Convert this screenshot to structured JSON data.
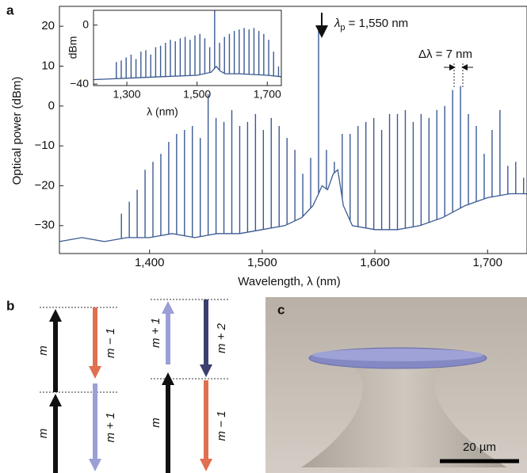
{
  "chart_data": [
    {
      "type": "line",
      "ylabel": "Optical power (dBm)",
      "xlabel": "Wavelength, λ (nm)",
      "xlim": [
        1320,
        1735
      ],
      "ylim": [
        -37,
        25
      ],
      "xticks": [
        {
          "value": 1400,
          "label": "1,400"
        },
        {
          "value": 1500,
          "label": "1,500"
        },
        {
          "value": 1600,
          "label": "1,600"
        },
        {
          "value": 1700,
          "label": "1,700"
        }
      ],
      "yticks": [
        {
          "value": -30,
          "label": "−30"
        },
        {
          "value": -20,
          "label": "−20"
        },
        {
          "value": -10,
          "label": "−10"
        },
        0,
        10,
        20
      ],
      "grid": false,
      "series": [
        {
          "style": "line",
          "color": "#3b5a92",
          "x": [
            1320,
            1340,
            1360,
            1380,
            1400,
            1420,
            1440,
            1460,
            1480,
            1500,
            1520,
            1535,
            1545,
            1550,
            1553,
            1558,
            1563,
            1567,
            1572,
            1580,
            1600,
            1620,
            1640,
            1660,
            1680,
            1700,
            1720,
            1735
          ],
          "values": [
            -34,
            -33,
            -34,
            -33,
            -33,
            -32,
            -33,
            -32,
            -32,
            -31,
            -30,
            -28,
            -25,
            -22,
            -20,
            -21,
            -17,
            -16,
            -25,
            -30,
            -31,
            -31,
            -30,
            -28,
            -25,
            -23,
            -22,
            -22
          ]
        },
        {
          "style": "stems",
          "color": "#3b5a92",
          "x": [
            1375,
            1382,
            1389,
            1396,
            1403,
            1410,
            1417,
            1424,
            1431,
            1438,
            1445,
            1452,
            1459,
            1466,
            1473,
            1480,
            1487,
            1494,
            1501,
            1508,
            1515,
            1522,
            1529,
            1536,
            1543,
            1550,
            1557,
            1564,
            1571,
            1578,
            1585,
            1592,
            1599,
            1606,
            1613,
            1620,
            1627,
            1634,
            1641,
            1648,
            1655,
            1662,
            1669,
            1676,
            1683,
            1690,
            1697,
            1704,
            1711,
            1718,
            1725,
            1732
          ],
          "values": [
            -27,
            -24,
            -21,
            -16,
            -14,
            -12,
            -9,
            -7,
            -6,
            -5,
            -8,
            3,
            -3,
            -4,
            -1,
            -5,
            -4,
            -2,
            -6,
            -3,
            -5,
            -8,
            -11,
            -17,
            -13,
            20,
            -11,
            -14,
            -7,
            -7,
            -5,
            -4,
            -3,
            -6,
            -2,
            -2,
            -1,
            -4,
            -2,
            -3,
            -1,
            0,
            4,
            5,
            -2,
            -5,
            -12,
            -6,
            -1,
            -15,
            -14,
            -18
          ]
        }
      ],
      "annotations": {
        "pump_symbol": "λ",
        "pump_sub": "p",
        "pump_text": " = 1,550 nm",
        "spacing": "Δλ = 7 nm"
      }
    },
    {
      "type": "line",
      "ylabel": "dBm",
      "xlabel": "λ (nm)",
      "xlim": [
        1205,
        1740
      ],
      "ylim": [
        -41,
        10
      ],
      "xticks": [
        {
          "value": 1300,
          "label": "1,300"
        },
        {
          "value": 1500,
          "label": "1,500"
        },
        {
          "value": 1700,
          "label": "1,700"
        }
      ],
      "yticks": [
        {
          "value": -40,
          "label": "−40"
        },
        0
      ],
      "grid": false,
      "series": [
        {
          "style": "line",
          "color": "#3b5a92",
          "x": [
            1205,
            1300,
            1400,
            1500,
            1540,
            1555,
            1565,
            1580,
            1620,
            1700,
            1740
          ],
          "values": [
            -37,
            -36,
            -35,
            -34,
            -32,
            -28,
            -31,
            -33,
            -33,
            -34,
            -35
          ]
        },
        {
          "style": "stems",
          "color": "#3b5a92",
          "x": [
            1270,
            1284,
            1298,
            1312,
            1326,
            1340,
            1354,
            1368,
            1382,
            1396,
            1410,
            1424,
            1438,
            1452,
            1466,
            1480,
            1494,
            1508,
            1522,
            1536,
            1550,
            1564,
            1578,
            1592,
            1606,
            1620,
            1634,
            1648,
            1662,
            1676,
            1690,
            1704,
            1718,
            1732
          ],
          "values": [
            -25,
            -24,
            -22,
            -20,
            -23,
            -18,
            -17,
            -20,
            -15,
            -14,
            -12,
            -10,
            -11,
            -9,
            -8,
            -10,
            -7,
            -6,
            -9,
            -15,
            10,
            -12,
            -8,
            -6,
            -4,
            -3,
            -2,
            -3,
            -2,
            -4,
            -6,
            -10,
            -18,
            -28
          ]
        }
      ]
    }
  ],
  "panel_labels": [
    "a",
    "b",
    "c"
  ],
  "diagram": {
    "labels": [
      "m",
      "m − 1",
      "m",
      "m + 1",
      "m + 1",
      "m + 2",
      "m",
      "m − 1"
    ]
  },
  "micrograph": {
    "scale_bar": "20 µm"
  }
}
